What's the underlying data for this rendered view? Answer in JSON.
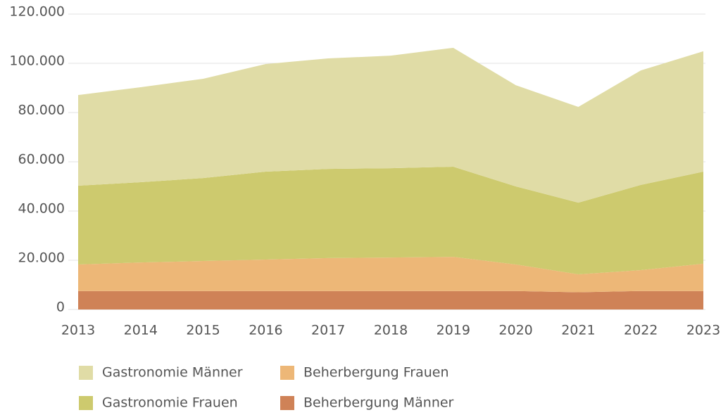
{
  "chart_data": {
    "type": "stacked_area",
    "categories": [
      "2013",
      "2014",
      "2015",
      "2016",
      "2017",
      "2018",
      "2019",
      "2020",
      "2021",
      "2022",
      "2023"
    ],
    "series": [
      {
        "name": "Beherbergung Männer",
        "color": "#cf8257",
        "values": [
          7500,
          7500,
          7500,
          7500,
          7500,
          7500,
          7500,
          7500,
          7000,
          7500,
          7500
        ]
      },
      {
        "name": "Beherbergung Frauen",
        "color": "#edb777",
        "values": [
          10800,
          11600,
          12200,
          12800,
          13400,
          13600,
          13900,
          10800,
          7300,
          8500,
          11100
        ]
      },
      {
        "name": "Gastronomie Frauen",
        "color": "#cdca6e",
        "values": [
          32000,
          32600,
          33700,
          35700,
          36200,
          36300,
          36600,
          31700,
          29100,
          34600,
          37400
        ]
      },
      {
        "name": "Gastronomie Männer",
        "color": "#e0dca6",
        "values": [
          36800,
          38600,
          40300,
          43700,
          44900,
          45700,
          48300,
          41100,
          38900,
          46500,
          48900
        ]
      }
    ],
    "ylim": [
      0,
      120000
    ],
    "yticks": [
      0,
      {
        "value": 20000,
        "label": "20.000"
      },
      {
        "value": 40000,
        "label": "40.000"
      },
      {
        "value": 60000,
        "label": "60.000"
      },
      {
        "value": 80000,
        "label": "80.000"
      },
      {
        "value": 100000,
        "label": "100.000"
      },
      {
        "value": 120000,
        "label": "120.000"
      }
    ],
    "grid": true
  }
}
